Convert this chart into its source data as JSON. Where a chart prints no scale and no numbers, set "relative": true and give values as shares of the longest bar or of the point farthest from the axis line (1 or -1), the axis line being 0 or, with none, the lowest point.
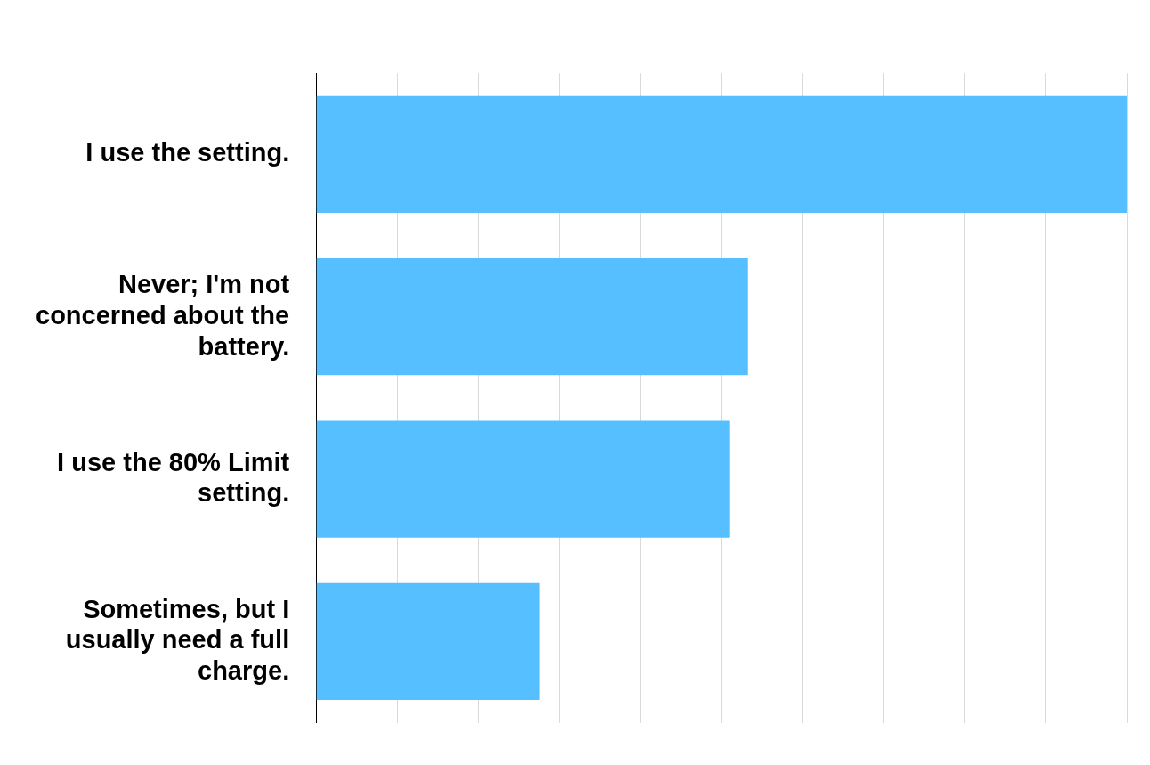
{
  "chart_data": {
    "type": "bar",
    "orientation": "horizontal",
    "relative": true,
    "grid": "x",
    "categories": [
      "I use the setting.",
      "Never; I'm not concerned about the battery.",
      "I use the 80% Limit setting.",
      "Sometimes, but I usually need a full charge."
    ],
    "values": [
      1,
      0.532,
      0.51,
      0.276
    ],
    "color": "#55bfff"
  }
}
